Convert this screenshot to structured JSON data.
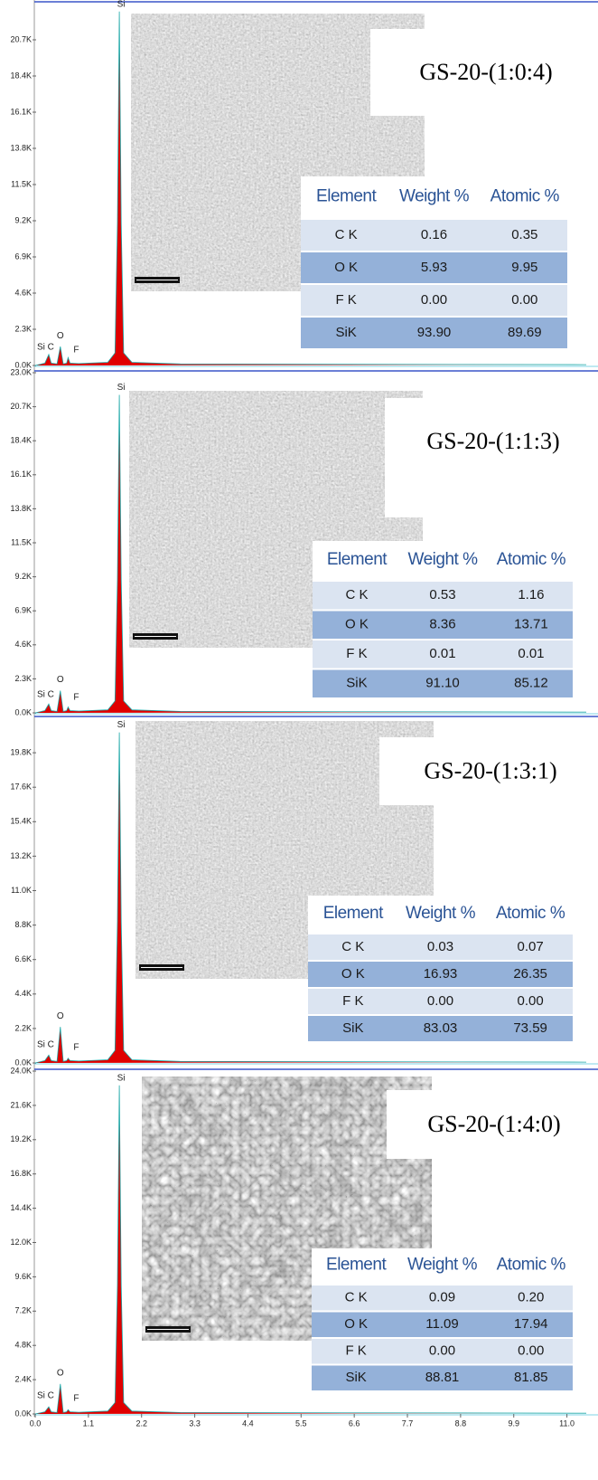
{
  "chart_data": [
    {
      "type": "line",
      "color": "#e00000",
      "x": [
        0,
        0.2,
        0.28,
        0.33,
        0.45,
        0.52,
        0.58,
        0.65,
        0.68,
        0.72,
        0.9,
        1.5,
        1.65,
        1.7,
        1.74,
        1.78,
        1.83,
        2.0,
        3.0,
        11.4
      ],
      "values": [
        0,
        150,
        700,
        150,
        100,
        1200,
        100,
        150,
        500,
        150,
        120,
        200,
        800,
        9000,
        22500,
        9000,
        800,
        200,
        100,
        50
      ],
      "xlim": [
        0,
        11.4
      ],
      "ylim": [
        0,
        23000
      ],
      "yticks": [
        {
          "value": 0,
          "label": "0.0K"
        },
        {
          "value": 2300,
          "label": "2.3K"
        },
        {
          "value": 4600,
          "label": "4.6K"
        },
        {
          "value": 6900,
          "label": "6.9K"
        },
        {
          "value": 9200,
          "label": "9.2K"
        },
        {
          "value": 11500,
          "label": "11.5K"
        },
        {
          "value": 13800,
          "label": "13.8K"
        },
        {
          "value": 16100,
          "label": "16.1K"
        },
        {
          "value": 18400,
          "label": "18.4K"
        },
        {
          "value": 20700,
          "label": "20.7K"
        }
      ],
      "annotations": [
        "Si",
        "Si C",
        "O",
        "F"
      ]
    },
    {
      "type": "line",
      "color": "#e00000",
      "x": [
        0,
        0.2,
        0.28,
        0.33,
        0.45,
        0.52,
        0.58,
        0.65,
        0.68,
        0.72,
        0.9,
        1.5,
        1.65,
        1.7,
        1.74,
        1.78,
        1.83,
        2.0,
        3.0,
        11.4
      ],
      "values": [
        0,
        150,
        600,
        150,
        100,
        1500,
        100,
        150,
        400,
        150,
        120,
        200,
        800,
        9000,
        21500,
        9000,
        800,
        200,
        100,
        50
      ],
      "xlim": [
        0,
        11.4
      ],
      "ylim": [
        0,
        23000
      ],
      "yticks": [
        {
          "value": 0,
          "label": "0.0K"
        },
        {
          "value": 2300,
          "label": "2.3K"
        },
        {
          "value": 4600,
          "label": "4.6K"
        },
        {
          "value": 6900,
          "label": "6.9K"
        },
        {
          "value": 9200,
          "label": "9.2K"
        },
        {
          "value": 11500,
          "label": "11.5K"
        },
        {
          "value": 13800,
          "label": "13.8K"
        },
        {
          "value": 16100,
          "label": "16.1K"
        },
        {
          "value": 18400,
          "label": "18.4K"
        },
        {
          "value": 20700,
          "label": "20.7K"
        },
        {
          "value": 23000,
          "label": "23.0K"
        }
      ],
      "annotations": [
        "Si",
        "Si C",
        "O",
        "F"
      ]
    },
    {
      "type": "line",
      "color": "#e00000",
      "x": [
        0,
        0.2,
        0.28,
        0.33,
        0.45,
        0.52,
        0.58,
        0.65,
        0.68,
        0.72,
        0.9,
        1.5,
        1.65,
        1.7,
        1.74,
        1.78,
        1.83,
        2.0,
        3.0,
        11.4
      ],
      "values": [
        0,
        150,
        500,
        150,
        100,
        2300,
        100,
        150,
        300,
        150,
        120,
        200,
        800,
        9000,
        21100,
        9000,
        800,
        200,
        100,
        50
      ],
      "xlim": [
        0,
        11.4
      ],
      "ylim": [
        0,
        22000
      ],
      "yticks": [
        {
          "value": 0,
          "label": "0.0K"
        },
        {
          "value": 2200,
          "label": "2.2K"
        },
        {
          "value": 4400,
          "label": "4.4K"
        },
        {
          "value": 6600,
          "label": "6.6K"
        },
        {
          "value": 8800,
          "label": "8.8K"
        },
        {
          "value": 11000,
          "label": "11.0K"
        },
        {
          "value": 13200,
          "label": "13.2K"
        },
        {
          "value": 15400,
          "label": "15.4K"
        },
        {
          "value": 17600,
          "label": "17.6K"
        },
        {
          "value": 19800,
          "label": "19.8K"
        }
      ],
      "annotations": [
        "Si",
        "Si C",
        "O",
        "F"
      ]
    },
    {
      "type": "line",
      "color": "#e00000",
      "x": [
        0,
        0.2,
        0.28,
        0.33,
        0.45,
        0.52,
        0.58,
        0.65,
        0.68,
        0.72,
        0.9,
        1.5,
        1.65,
        1.7,
        1.74,
        1.78,
        1.83,
        2.0,
        3.0,
        11.4
      ],
      "values": [
        0,
        150,
        500,
        150,
        100,
        2100,
        100,
        150,
        300,
        150,
        120,
        200,
        800,
        9000,
        23000,
        9000,
        800,
        200,
        100,
        50
      ],
      "xlim": [
        0,
        11.4
      ],
      "ylim": [
        0,
        24000
      ],
      "yticks": [
        {
          "value": 0,
          "label": "0.0K"
        },
        {
          "value": 2400,
          "label": "2.4K"
        },
        {
          "value": 4800,
          "label": "4.8K"
        },
        {
          "value": 7200,
          "label": "7.2K"
        },
        {
          "value": 9600,
          "label": "9.6K"
        },
        {
          "value": 12000,
          "label": "12.0K"
        },
        {
          "value": 14400,
          "label": "14.4K"
        },
        {
          "value": 16800,
          "label": "16.8K"
        },
        {
          "value": 19200,
          "label": "19.2K"
        },
        {
          "value": 21600,
          "label": "21.6K"
        },
        {
          "value": 24000,
          "label": "24.0K"
        }
      ],
      "xticks": [
        {
          "value": 0,
          "label": "0.0"
        },
        1.1,
        2.2,
        3.3,
        4.4,
        5.5,
        6.6,
        7.7,
        8.8,
        9.9,
        {
          "value": 11,
          "label": "11.0"
        }
      ],
      "annotations": [
        "Si",
        "Si C",
        "O",
        "F"
      ]
    }
  ],
  "panels": [
    {
      "label": "GS-20-(1:0:4)",
      "table": {
        "header": [
          "Element",
          "Weight %",
          "Atomic %"
        ],
        "rows": [
          [
            "C K",
            "0.16",
            "0.35"
          ],
          [
            "O K",
            "5.93",
            "9.95"
          ],
          [
            "F K",
            "0.00",
            "0.00"
          ],
          [
            "SiK",
            "93.90",
            "89.69"
          ]
        ]
      }
    },
    {
      "label": "GS-20-(1:1:3)",
      "table": {
        "header": [
          "Element",
          "Weight %",
          "Atomic %"
        ],
        "rows": [
          [
            "C K",
            "0.53",
            "1.16"
          ],
          [
            "O K",
            "8.36",
            "13.71"
          ],
          [
            "F K",
            "0.01",
            "0.01"
          ],
          [
            "SiK",
            "91.10",
            "85.12"
          ]
        ]
      }
    },
    {
      "label": "GS-20-(1:3:1)",
      "table": {
        "header": [
          "Element",
          "Weight %",
          "Atomic %"
        ],
        "rows": [
          [
            "C K",
            "0.03",
            "0.07"
          ],
          [
            "O K",
            "16.93",
            "26.35"
          ],
          [
            "F K",
            "0.00",
            "0.00"
          ],
          [
            "SiK",
            "83.03",
            "73.59"
          ]
        ]
      }
    },
    {
      "label": "GS-20-(1:4:0)",
      "table": {
        "header": [
          "Element",
          "Weight %",
          "Atomic %"
        ],
        "rows": [
          [
            "C K",
            "0.09",
            "0.20"
          ],
          [
            "O K",
            "11.09",
            "17.94"
          ],
          [
            "F K",
            "0.00",
            "0.00"
          ],
          [
            "SiK",
            "88.81",
            "81.85"
          ]
        ]
      }
    }
  ]
}
